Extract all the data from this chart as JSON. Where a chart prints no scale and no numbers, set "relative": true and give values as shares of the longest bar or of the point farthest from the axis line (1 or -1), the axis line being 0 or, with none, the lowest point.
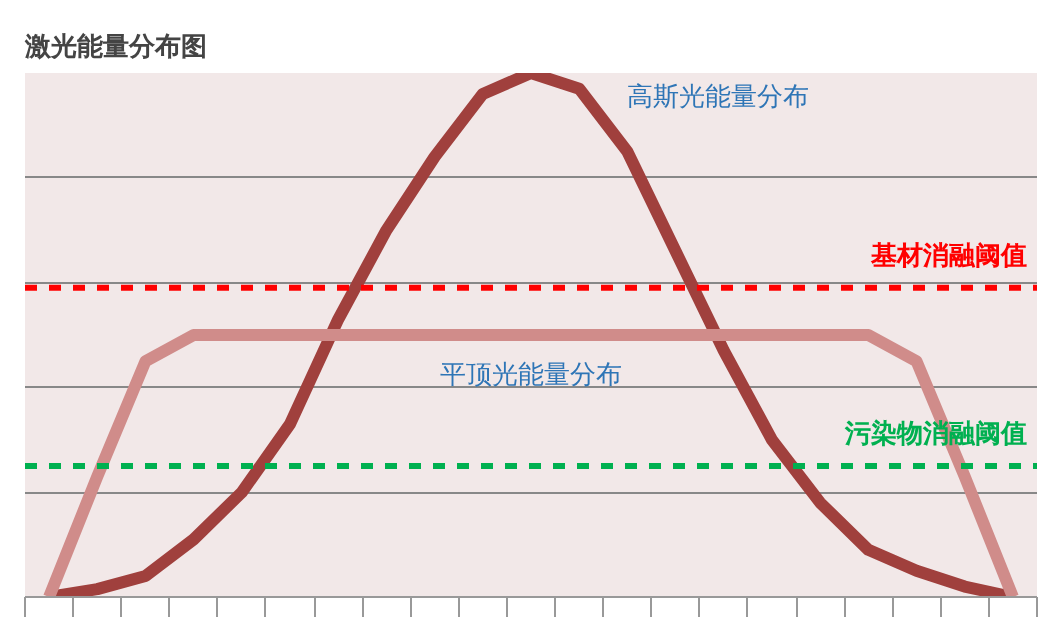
{
  "chart_data": {
    "type": "line",
    "title": "激光能量分布图",
    "relative": true,
    "grid": "y",
    "marker": "none",
    "line_style": "solid",
    "categories": [
      null,
      null,
      null,
      null,
      null,
      null,
      null,
      null,
      null,
      null,
      null,
      null,
      null,
      null,
      null,
      null,
      null,
      null,
      null,
      null,
      null
    ],
    "series": [
      {
        "name": "高斯光能量分布",
        "color": "#a0403d",
        "values": [
          0.0,
          0.015,
          0.04,
          0.11,
          0.2,
          0.33,
          0.53,
          0.7,
          0.84,
          0.96,
          1.0,
          0.97,
          0.85,
          0.66,
          0.47,
          0.3,
          0.18,
          0.09,
          0.05,
          0.02,
          0.0
        ]
      },
      {
        "name": "平顶光能量分布",
        "color": "#d08c8a",
        "values": [
          0.0,
          0.23,
          0.45,
          0.5,
          0.5,
          0.5,
          0.5,
          0.5,
          0.5,
          0.5,
          0.5,
          0.5,
          0.5,
          0.5,
          0.5,
          0.5,
          0.5,
          0.5,
          0.45,
          0.23,
          0.0
        ]
      }
    ],
    "ref_lines": [
      {
        "axis": "y",
        "value": 0.59,
        "label": "基材消融阈值",
        "color": "#ff0000",
        "line_style": "dashed"
      },
      {
        "axis": "y",
        "value": 0.25,
        "label": "污染物消融阈值",
        "color": "#00b050",
        "line_style": "dashed"
      }
    ]
  }
}
